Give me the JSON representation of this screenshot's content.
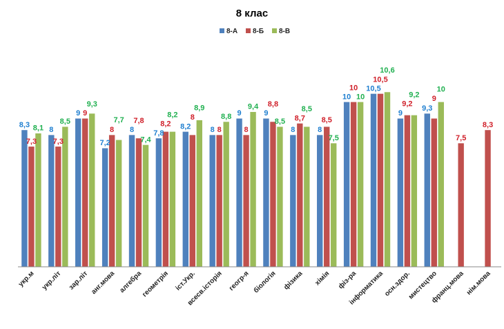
{
  "chart_data": {
    "type": "bar",
    "title": "8 клас",
    "xlabel": "",
    "ylabel": "",
    "ylim": [
      0,
      10.6
    ],
    "grid": false,
    "legend": "top-center",
    "categories": [
      "укр.м",
      "укр.літ",
      "зар.літ",
      "анг.мова",
      "алгебра",
      "геометрія",
      "іст.Укр.",
      "всесв.історія",
      "геогр-я",
      "біологія",
      "фізика",
      "хімія",
      "фіз-ра",
      "інформатика",
      "осн.здор.",
      "мистецтво",
      "франц.мова",
      "нім.мова"
    ],
    "series": [
      {
        "name": "8-А",
        "color": "#4f81bd",
        "label_color": "#1f7fd0",
        "values": [
          8.3,
          8,
          9,
          7.2,
          8,
          7.8,
          8.2,
          8,
          9,
          9,
          8,
          8,
          10,
          10.5,
          9,
          9.3,
          null,
          null
        ],
        "labels": [
          "8,3",
          "8",
          "9",
          "7,2",
          "8",
          "7,8",
          "8,2",
          "8",
          "9",
          "9",
          "8",
          "8",
          "10",
          "10,5",
          "9",
          "9,3",
          null,
          null
        ]
      },
      {
        "name": "8-Б",
        "color": "#c0504d",
        "label_color": "#d0202a",
        "values": [
          7.3,
          7.3,
          9,
          8,
          7.8,
          8.2,
          8,
          8,
          8,
          8.8,
          8.7,
          8.5,
          10,
          10.5,
          9.2,
          9,
          7.5,
          8.3
        ],
        "labels": [
          "7,3",
          "7,3",
          "9",
          "8",
          "7,8",
          "8,2",
          "8",
          "8",
          "8",
          "8,8",
          "8,7",
          "8,5",
          "10",
          "10,5",
          "9,2",
          "9",
          "7,5",
          "8,3"
        ]
      },
      {
        "name": "8-В",
        "color": "#9bbb59",
        "label_color": "#20b050",
        "values": [
          8.1,
          8.5,
          9.3,
          7.7,
          7.4,
          8.2,
          8.9,
          8.8,
          9.4,
          8.5,
          8.5,
          7.5,
          10,
          10.6,
          9.2,
          10,
          null,
          null
        ],
        "labels": [
          "8,1",
          "8,5",
          "9,3",
          "7,7",
          "7,4",
          "8,2",
          "8,9",
          "8,8",
          "9,4",
          "8,5",
          "8,5",
          "7,5",
          "10",
          "10,6",
          "9,2",
          "10",
          null,
          null
        ]
      }
    ]
  }
}
